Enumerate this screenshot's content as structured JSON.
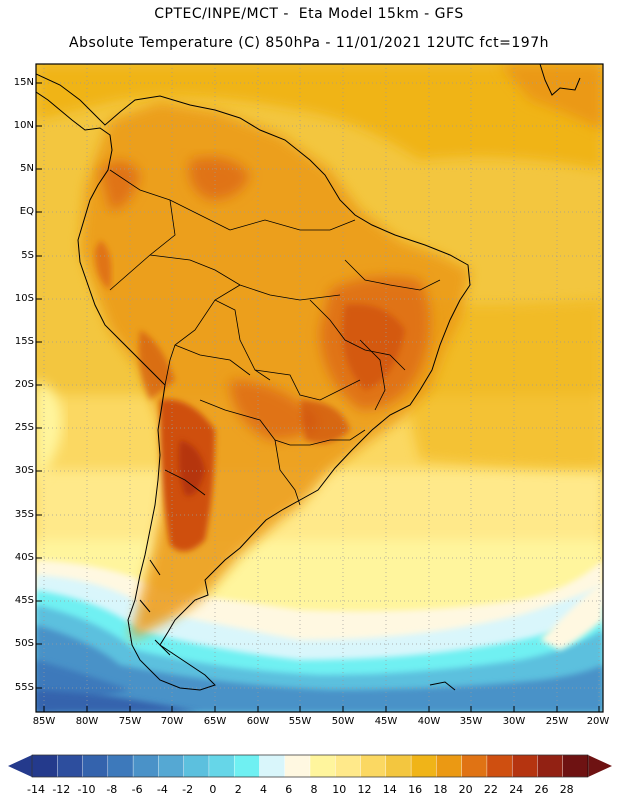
{
  "header": {
    "line1": "CPTEC/INPE/MCT -  Eta Model 15km - GFS",
    "line2": "Absolute Temperature (C) 850hPa - 11/01/2021 12UTC fct=197h"
  },
  "map": {
    "region": "South America",
    "lat_ticks": [
      "15N",
      "10N",
      "5N",
      "EQ",
      "5S",
      "10S",
      "15S",
      "20S",
      "25S",
      "30S",
      "35S",
      "40S",
      "45S",
      "50S",
      "55S"
    ],
    "lon_ticks": [
      "85W",
      "80W",
      "75W",
      "70W",
      "65W",
      "60W",
      "55W",
      "50W",
      "45W",
      "40W",
      "35W",
      "30W",
      "25W",
      "20W"
    ]
  },
  "colorbar": {
    "labels": [
      "-14",
      "-12",
      "-10",
      "-8",
      "-6",
      "-4",
      "-2",
      "0",
      "2",
      "4",
      "6",
      "8",
      "10",
      "12",
      "14",
      "16",
      "18",
      "20",
      "22",
      "24",
      "26",
      "28"
    ],
    "colors": [
      "#243a8c",
      "#2d4e9e",
      "#3463ad",
      "#3d79bb",
      "#4a92c8",
      "#55a8d3",
      "#5cc0de",
      "#66d6e8",
      "#6ff0f2",
      "#d9f6fb",
      "#fff8e1",
      "#fff59d",
      "#ffe98a",
      "#fbd862",
      "#f3c63f",
      "#f0b418",
      "#eb9913",
      "#e07314",
      "#cf4f10",
      "#b53410",
      "#922113",
      "#6e1212"
    ]
  }
}
